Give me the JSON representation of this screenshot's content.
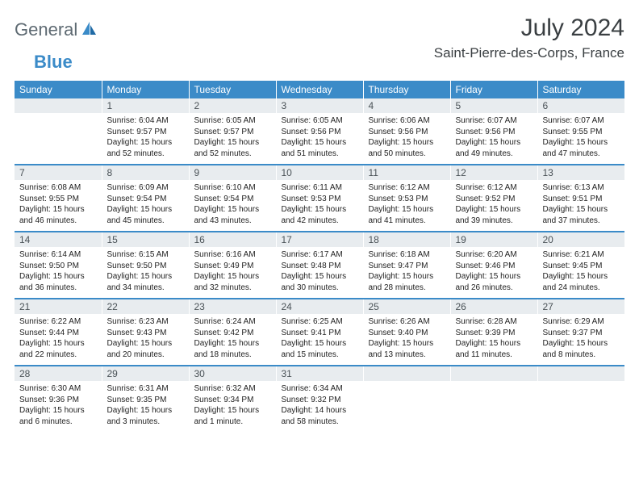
{
  "brand": {
    "part1": "General",
    "part2": "Blue"
  },
  "title": "July 2024",
  "location": "Saint-Pierre-des-Corps, France",
  "colors": {
    "header_bg": "#3b8bc8",
    "header_text": "#ffffff",
    "daynum_bg": "#e8ecef",
    "daynum_text": "#4a5257",
    "divider": "#3b8bc8",
    "logo_gray": "#5e6a72",
    "logo_blue": "#3b8bc8"
  },
  "day_names": [
    "Sunday",
    "Monday",
    "Tuesday",
    "Wednesday",
    "Thursday",
    "Friday",
    "Saturday"
  ],
  "weeks": [
    [
      null,
      {
        "n": "1",
        "sr": "6:04 AM",
        "ss": "9:57 PM",
        "dl": "15 hours and 52 minutes."
      },
      {
        "n": "2",
        "sr": "6:05 AM",
        "ss": "9:57 PM",
        "dl": "15 hours and 52 minutes."
      },
      {
        "n": "3",
        "sr": "6:05 AM",
        "ss": "9:56 PM",
        "dl": "15 hours and 51 minutes."
      },
      {
        "n": "4",
        "sr": "6:06 AM",
        "ss": "9:56 PM",
        "dl": "15 hours and 50 minutes."
      },
      {
        "n": "5",
        "sr": "6:07 AM",
        "ss": "9:56 PM",
        "dl": "15 hours and 49 minutes."
      },
      {
        "n": "6",
        "sr": "6:07 AM",
        "ss": "9:55 PM",
        "dl": "15 hours and 47 minutes."
      }
    ],
    [
      {
        "n": "7",
        "sr": "6:08 AM",
        "ss": "9:55 PM",
        "dl": "15 hours and 46 minutes."
      },
      {
        "n": "8",
        "sr": "6:09 AM",
        "ss": "9:54 PM",
        "dl": "15 hours and 45 minutes."
      },
      {
        "n": "9",
        "sr": "6:10 AM",
        "ss": "9:54 PM",
        "dl": "15 hours and 43 minutes."
      },
      {
        "n": "10",
        "sr": "6:11 AM",
        "ss": "9:53 PM",
        "dl": "15 hours and 42 minutes."
      },
      {
        "n": "11",
        "sr": "6:12 AM",
        "ss": "9:53 PM",
        "dl": "15 hours and 41 minutes."
      },
      {
        "n": "12",
        "sr": "6:12 AM",
        "ss": "9:52 PM",
        "dl": "15 hours and 39 minutes."
      },
      {
        "n": "13",
        "sr": "6:13 AM",
        "ss": "9:51 PM",
        "dl": "15 hours and 37 minutes."
      }
    ],
    [
      {
        "n": "14",
        "sr": "6:14 AM",
        "ss": "9:50 PM",
        "dl": "15 hours and 36 minutes."
      },
      {
        "n": "15",
        "sr": "6:15 AM",
        "ss": "9:50 PM",
        "dl": "15 hours and 34 minutes."
      },
      {
        "n": "16",
        "sr": "6:16 AM",
        "ss": "9:49 PM",
        "dl": "15 hours and 32 minutes."
      },
      {
        "n": "17",
        "sr": "6:17 AM",
        "ss": "9:48 PM",
        "dl": "15 hours and 30 minutes."
      },
      {
        "n": "18",
        "sr": "6:18 AM",
        "ss": "9:47 PM",
        "dl": "15 hours and 28 minutes."
      },
      {
        "n": "19",
        "sr": "6:20 AM",
        "ss": "9:46 PM",
        "dl": "15 hours and 26 minutes."
      },
      {
        "n": "20",
        "sr": "6:21 AM",
        "ss": "9:45 PM",
        "dl": "15 hours and 24 minutes."
      }
    ],
    [
      {
        "n": "21",
        "sr": "6:22 AM",
        "ss": "9:44 PM",
        "dl": "15 hours and 22 minutes."
      },
      {
        "n": "22",
        "sr": "6:23 AM",
        "ss": "9:43 PM",
        "dl": "15 hours and 20 minutes."
      },
      {
        "n": "23",
        "sr": "6:24 AM",
        "ss": "9:42 PM",
        "dl": "15 hours and 18 minutes."
      },
      {
        "n": "24",
        "sr": "6:25 AM",
        "ss": "9:41 PM",
        "dl": "15 hours and 15 minutes."
      },
      {
        "n": "25",
        "sr": "6:26 AM",
        "ss": "9:40 PM",
        "dl": "15 hours and 13 minutes."
      },
      {
        "n": "26",
        "sr": "6:28 AM",
        "ss": "9:39 PM",
        "dl": "15 hours and 11 minutes."
      },
      {
        "n": "27",
        "sr": "6:29 AM",
        "ss": "9:37 PM",
        "dl": "15 hours and 8 minutes."
      }
    ],
    [
      {
        "n": "28",
        "sr": "6:30 AM",
        "ss": "9:36 PM",
        "dl": "15 hours and 6 minutes."
      },
      {
        "n": "29",
        "sr": "6:31 AM",
        "ss": "9:35 PM",
        "dl": "15 hours and 3 minutes."
      },
      {
        "n": "30",
        "sr": "6:32 AM",
        "ss": "9:34 PM",
        "dl": "15 hours and 1 minute."
      },
      {
        "n": "31",
        "sr": "6:34 AM",
        "ss": "9:32 PM",
        "dl": "14 hours and 58 minutes."
      },
      null,
      null,
      null
    ]
  ],
  "labels": {
    "sunrise": "Sunrise: ",
    "sunset": "Sunset: ",
    "daylight": "Daylight: "
  }
}
